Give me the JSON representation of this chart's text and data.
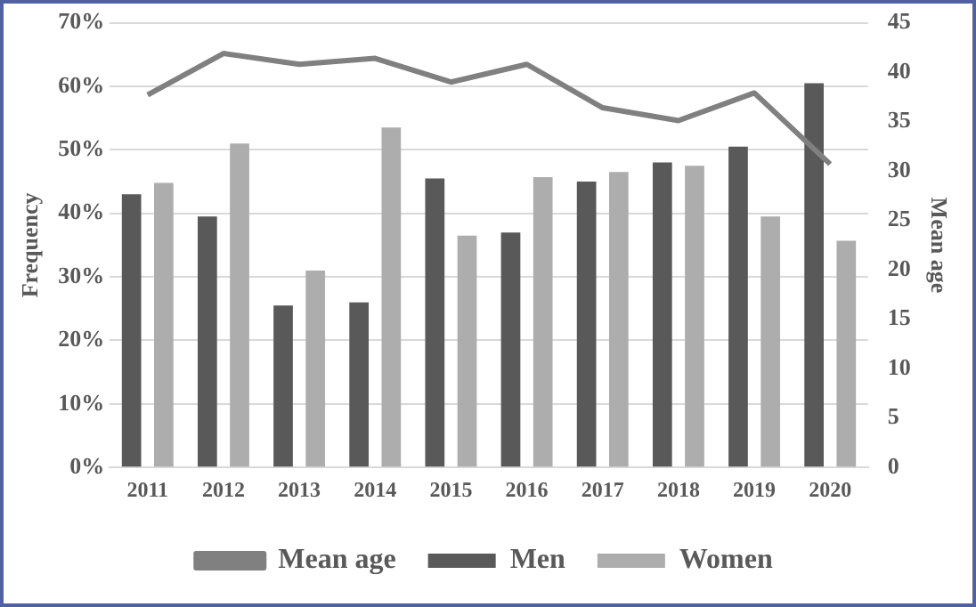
{
  "chart_data": {
    "type": "bar",
    "ylabel": "Frequency",
    "y2label": "Mean age",
    "categories": [
      "2011",
      "2012",
      "2013",
      "2014",
      "2015",
      "2016",
      "2017",
      "2018",
      "2019",
      "2020"
    ],
    "series": [
      {
        "name": "Men",
        "color": "#595959",
        "values": [
          43,
          39.5,
          25.5,
          26,
          45.5,
          37,
          45,
          48,
          50.5,
          60.5
        ]
      },
      {
        "name": "Women",
        "color": "#adadad",
        "values": [
          44.8,
          51,
          31,
          53.5,
          36.5,
          45.7,
          46.5,
          47.5,
          39.5,
          35.7
        ]
      },
      {
        "name": "Mean age",
        "type": "line",
        "axis": "y2",
        "color": "#808080",
        "values": [
          37.7,
          41.9,
          40.8,
          41.4,
          39,
          40.8,
          36.4,
          35.1,
          37.9,
          30.7
        ]
      }
    ],
    "ylim": [
      0,
      70
    ],
    "yticks": [
      {
        "value": 0,
        "label": "0%"
      },
      {
        "value": 10,
        "label": "10%"
      },
      {
        "value": 20,
        "label": "20%"
      },
      {
        "value": 30,
        "label": "30%"
      },
      {
        "value": 40,
        "label": "40%"
      },
      {
        "value": 50,
        "label": "50%"
      },
      {
        "value": 60,
        "label": "60%"
      },
      {
        "value": 70,
        "label": "70%"
      }
    ],
    "y2lim": [
      0,
      45
    ],
    "y2ticks": [
      0,
      5,
      10,
      15,
      20,
      25,
      30,
      35,
      40,
      45
    ],
    "grid": "y",
    "legend": "bottom",
    "marker": "none"
  }
}
